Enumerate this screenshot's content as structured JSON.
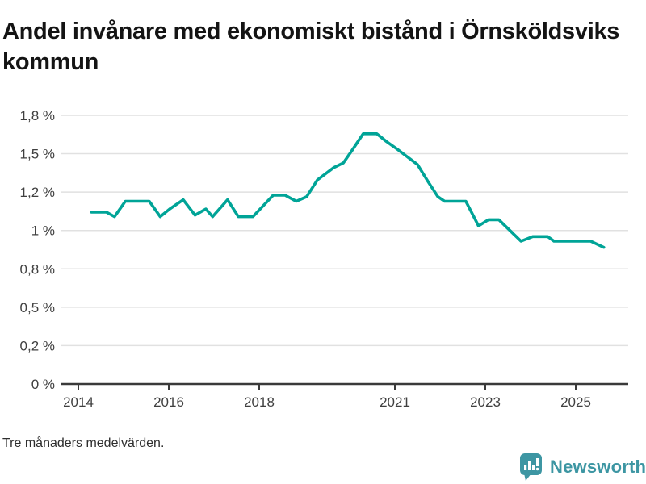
{
  "title": "Andel invånare med ekonomiskt bistånd i Örnsköldsviks kommun",
  "footnote": "Tre månaders medelvärden.",
  "branding": {
    "name": "Newsworthy",
    "icon": "newsworthy-speech-bubble-bar-chart-icon",
    "color": "#3d96a3"
  },
  "colors": {
    "line": "#00a497",
    "grid": "#e1e1e1",
    "axis": "#3a3a3a",
    "text": "#3f3f3f",
    "title": "#141414",
    "background": "#ffffff"
  },
  "chart_data": {
    "type": "line",
    "title": "Andel invånare med ekonomiskt bistånd i Örnsköldsviks kommun",
    "series_name": "Andel invånare med ekonomiskt bistånd",
    "unit": "%",
    "xlabel": "",
    "ylabel": "",
    "grid": "horizontal",
    "legend": "none",
    "xlim": [
      2013.6,
      2026.16
    ],
    "ylim": [
      0,
      1.79
    ],
    "x_ticks": [
      {
        "value": 2014,
        "label": "2014"
      },
      {
        "value": 2016,
        "label": "2016"
      },
      {
        "value": 2018,
        "label": "2018"
      },
      {
        "value": 2021,
        "label": "2021"
      },
      {
        "value": 2023,
        "label": "2023"
      },
      {
        "value": 2025,
        "label": "2025"
      }
    ],
    "y_ticks": [
      {
        "value": 1.75,
        "label": "1,8 %"
      },
      {
        "value": 1.5,
        "label": "1,5 %"
      },
      {
        "value": 1.25,
        "label": "1,2 %"
      },
      {
        "value": 1.0,
        "label": "1 %"
      },
      {
        "value": 0.75,
        "label": "0,8 %"
      },
      {
        "value": 0.5,
        "label": "0,5 %"
      },
      {
        "value": 0.25,
        "label": "0,2 %"
      },
      {
        "value": 0,
        "label": "0 %"
      }
    ],
    "points": [
      [
        2014.29,
        1.12
      ],
      [
        2014.62,
        1.12
      ],
      [
        2014.8,
        1.09
      ],
      [
        2015.04,
        1.19
      ],
      [
        2015.57,
        1.19
      ],
      [
        2015.81,
        1.09
      ],
      [
        2016.02,
        1.14
      ],
      [
        2016.32,
        1.2
      ],
      [
        2016.58,
        1.1
      ],
      [
        2016.82,
        1.14
      ],
      [
        2016.97,
        1.09
      ],
      [
        2017.3,
        1.2
      ],
      [
        2017.54,
        1.09
      ],
      [
        2017.86,
        1.09
      ],
      [
        2018.31,
        1.23
      ],
      [
        2018.57,
        1.23
      ],
      [
        2018.82,
        1.19
      ],
      [
        2019.05,
        1.22
      ],
      [
        2019.29,
        1.33
      ],
      [
        2019.47,
        1.37
      ],
      [
        2019.65,
        1.41
      ],
      [
        2019.86,
        1.44
      ],
      [
        2020.05,
        1.52
      ],
      [
        2020.3,
        1.63
      ],
      [
        2020.6,
        1.63
      ],
      [
        2020.81,
        1.58
      ],
      [
        2021.05,
        1.53
      ],
      [
        2021.23,
        1.49
      ],
      [
        2021.5,
        1.43
      ],
      [
        2021.73,
        1.32
      ],
      [
        2021.95,
        1.22
      ],
      [
        2022.1,
        1.19
      ],
      [
        2022.57,
        1.19
      ],
      [
        2022.85,
        1.03
      ],
      [
        2023.07,
        1.07
      ],
      [
        2023.3,
        1.07
      ],
      [
        2023.79,
        0.93
      ],
      [
        2024.05,
        0.96
      ],
      [
        2024.38,
        0.96
      ],
      [
        2024.52,
        0.93
      ],
      [
        2025.33,
        0.93
      ],
      [
        2025.62,
        0.89
      ]
    ]
  }
}
